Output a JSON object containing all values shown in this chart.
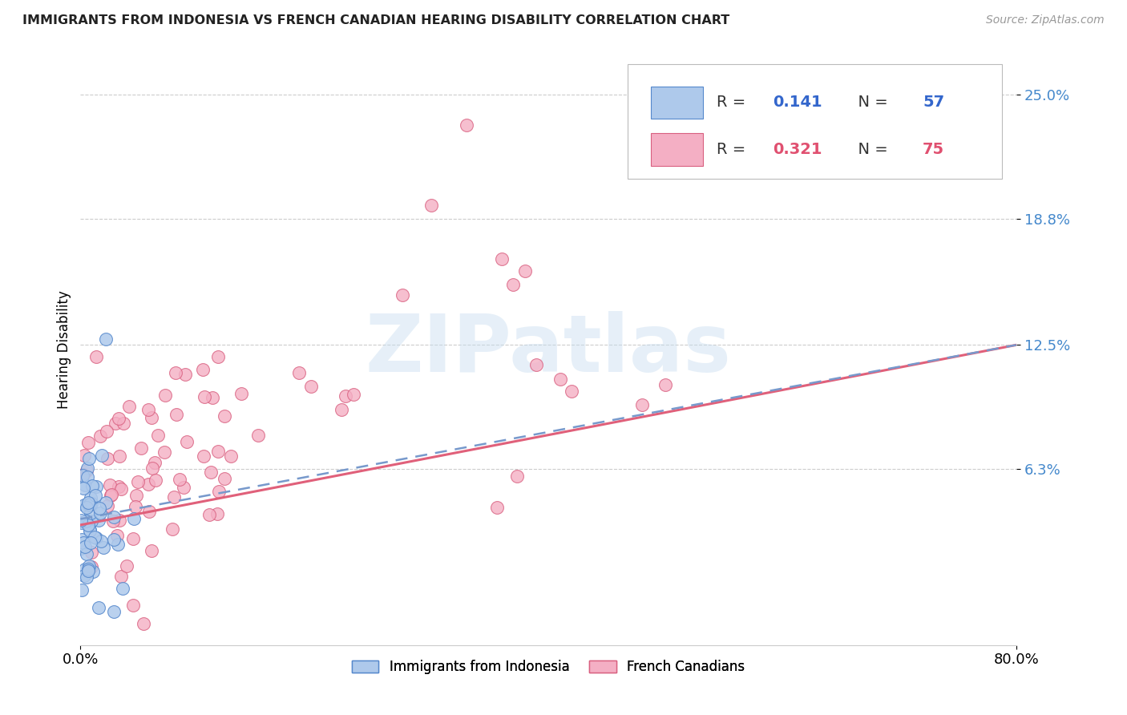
{
  "title": "IMMIGRANTS FROM INDONESIA VS FRENCH CANADIAN HEARING DISABILITY CORRELATION CHART",
  "source": "Source: ZipAtlas.com",
  "ylabel": "Hearing Disability",
  "xlim": [
    0.0,
    0.8
  ],
  "ylim": [
    -0.025,
    0.27
  ],
  "yticks": [
    0.063,
    0.125,
    0.188,
    0.25
  ],
  "ytick_labels": [
    "6.3%",
    "12.5%",
    "18.8%",
    "25.0%"
  ],
  "xtick_labels": [
    "0.0%",
    "80.0%"
  ],
  "xtick_vals": [
    0.0,
    0.8
  ],
  "watermark": "ZIPatlas",
  "series1_color": "#aec9eb",
  "series1_edge": "#5588cc",
  "series2_color": "#f4afc4",
  "series2_edge": "#d96080",
  "trend1_color": "#7799cc",
  "trend2_color": "#e0607a",
  "R1": 0.141,
  "N1": 57,
  "R2": 0.321,
  "N2": 75,
  "legend_R1": "0.141",
  "legend_N1": "57",
  "legend_R2": "0.321",
  "legend_N2": "75",
  "legend_color_blue": "#3366cc",
  "legend_color_pink": "#e05070",
  "title_color": "#222222",
  "source_color": "#999999",
  "ytick_color": "#4488cc",
  "grid_color": "#cccccc",
  "background_color": "#ffffff"
}
